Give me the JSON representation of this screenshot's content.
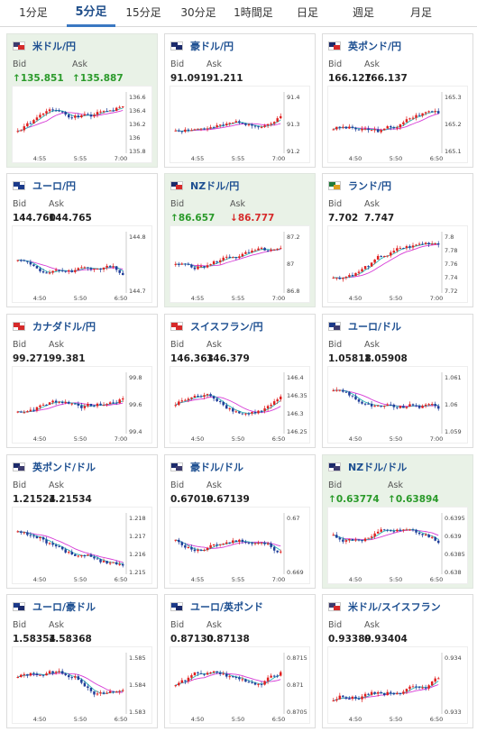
{
  "tabs": [
    {
      "label": "1分足",
      "active": false
    },
    {
      "label": "5分足",
      "active": true
    },
    {
      "label": "15分足",
      "active": false
    },
    {
      "label": "30分足",
      "active": false
    },
    {
      "label": "1時間足",
      "active": false
    },
    {
      "label": "日足",
      "active": false
    },
    {
      "label": "週足",
      "active": false
    },
    {
      "label": "月足",
      "active": false
    }
  ],
  "labels": {
    "bid": "Bid",
    "ask": "Ask"
  },
  "cards": [
    {
      "pair": "米ドル/円",
      "flag": [
        "#3c3b6e",
        "#d62a2a"
      ],
      "highlight": true,
      "bid": "135.851",
      "ask": "135.887",
      "bid_dir": "up",
      "ask_dir": "up",
      "chart_data": {
        "type": "candlestick",
        "yticks": [
          "136.6",
          "136.4",
          "136.2",
          "136",
          "135.8"
        ],
        "xticks": [
          "4:55",
          "5:55",
          "7:00"
        ],
        "trend": 0.35,
        "wave": 0.5,
        "seed": 1
      }
    },
    {
      "pair": "豪ドル/円",
      "flag": [
        "#1b2a6b",
        "#1b2a6b"
      ],
      "highlight": false,
      "bid": "91.091",
      "ask": "91.211",
      "bid_dir": "",
      "ask_dir": "",
      "chart_data": {
        "type": "candlestick",
        "yticks": [
          "91.4",
          "91.3",
          "91.2"
        ],
        "xticks": [
          "4:55",
          "5:55",
          "7:00"
        ],
        "trend": 0.3,
        "wave": 0.45,
        "seed": 2
      }
    },
    {
      "pair": "英ポンド/円",
      "flag": [
        "#1b2a6b",
        "#d62a2a"
      ],
      "highlight": false,
      "bid": "166.127",
      "ask": "166.137",
      "bid_dir": "",
      "ask_dir": "",
      "chart_data": {
        "type": "candlestick",
        "yticks": [
          "165.3",
          "165.2",
          "165.1"
        ],
        "xticks": [
          "4:50",
          "5:50",
          "6:50"
        ],
        "trend": 0.2,
        "wave": 0.6,
        "seed": 3
      }
    },
    {
      "pair": "ユーロ/円",
      "flag": [
        "#1b3a8a",
        "#1b3a8a"
      ],
      "highlight": false,
      "bid": "144.760",
      "ask": "144.765",
      "bid_dir": "",
      "ask_dir": "",
      "chart_data": {
        "type": "candlestick",
        "yticks": [
          "144.8",
          "144.7"
        ],
        "xticks": [
          "4:50",
          "5:50",
          "6:50"
        ],
        "trend": -0.2,
        "wave": 0.55,
        "seed": 4
      }
    },
    {
      "pair": "NZドル/円",
      "flag": [
        "#1b2a6b",
        "#d62a2a"
      ],
      "highlight": true,
      "bid": "86.657",
      "ask": "86.777",
      "bid_dir": "up",
      "ask_dir": "dn",
      "chart_data": {
        "type": "candlestick",
        "yticks": [
          "87.2",
          "87",
          "86.8"
        ],
        "xticks": [
          "4:55",
          "5:55",
          "7:00"
        ],
        "trend": 0.1,
        "wave": 0.5,
        "seed": 5
      }
    },
    {
      "pair": "ランド/円",
      "flag": [
        "#1e7a3a",
        "#e0a020"
      ],
      "highlight": false,
      "bid": "7.702",
      "ask": "7.747",
      "bid_dir": "",
      "ask_dir": "",
      "chart_data": {
        "type": "candlestick",
        "yticks": [
          "7.8",
          "7.78",
          "7.76",
          "7.74",
          "7.72"
        ],
        "xticks": [
          "4:50",
          "5:50",
          "7:00"
        ],
        "trend": 0.6,
        "wave": 0.3,
        "seed": 6
      }
    },
    {
      "pair": "カナダドル/円",
      "flag": [
        "#d62a2a",
        "#d62a2a"
      ],
      "highlight": false,
      "bid": "99.271",
      "ask": "99.381",
      "bid_dir": "",
      "ask_dir": "",
      "chart_data": {
        "type": "candlestick",
        "yticks": [
          "99.8",
          "99.6",
          "99.4"
        ],
        "xticks": [
          "4:50",
          "5:50",
          "7:00"
        ],
        "trend": 0.35,
        "wave": 0.4,
        "seed": 7
      }
    },
    {
      "pair": "スイスフラン/円",
      "flag": [
        "#d62a2a",
        "#d62a2a"
      ],
      "highlight": false,
      "bid": "146.363",
      "ask": "146.379",
      "bid_dir": "",
      "ask_dir": "",
      "chart_data": {
        "type": "candlestick",
        "yticks": [
          "146.4",
          "146.35",
          "146.3",
          "146.25"
        ],
        "xticks": [
          "4:50",
          "5:50",
          "6:50"
        ],
        "trend": 0.1,
        "wave": 0.6,
        "seed": 8
      }
    },
    {
      "pair": "ユーロ/ドル",
      "flag": [
        "#1b3a8a",
        "#3c3b6e"
      ],
      "highlight": false,
      "bid": "1.05818",
      "ask": "1.05908",
      "bid_dir": "",
      "ask_dir": "",
      "chart_data": {
        "type": "candlestick",
        "yticks": [
          "1.061",
          "1.06",
          "1.059"
        ],
        "xticks": [
          "4:50",
          "5:50",
          "7:00"
        ],
        "trend": -0.5,
        "wave": 0.4,
        "seed": 9
      }
    },
    {
      "pair": "英ポンド/ドル",
      "flag": [
        "#1b2a6b",
        "#3c3b6e"
      ],
      "highlight": false,
      "bid": "1.21524",
      "ask": "1.21534",
      "bid_dir": "",
      "ask_dir": "",
      "chart_data": {
        "type": "candlestick",
        "yticks": [
          "1.218",
          "1.217",
          "1.216",
          "1.215"
        ],
        "xticks": [
          "4:50",
          "5:50",
          "6:50"
        ],
        "trend": -0.55,
        "wave": 0.35,
        "seed": 10
      }
    },
    {
      "pair": "豪ドル/ドル",
      "flag": [
        "#1b2a6b",
        "#3c3b6e"
      ],
      "highlight": false,
      "bid": "0.67019",
      "ask": "0.67139",
      "bid_dir": "",
      "ask_dir": "",
      "chart_data": {
        "type": "candlestick",
        "yticks": [
          "0.67",
          "0.669"
        ],
        "xticks": [
          "4:55",
          "5:55",
          "7:00"
        ],
        "trend": -0.1,
        "wave": 0.5,
        "seed": 11
      }
    },
    {
      "pair": "NZドル/ドル",
      "flag": [
        "#1b2a6b",
        "#3c3b6e"
      ],
      "highlight": true,
      "bid": "0.63774",
      "ask": "0.63894",
      "bid_dir": "up",
      "ask_dir": "up",
      "chart_data": {
        "type": "candlestick",
        "yticks": [
          "0.6395",
          "0.639",
          "0.6385",
          "0.638"
        ],
        "xticks": [
          "4:50",
          "5:50",
          "6:50"
        ],
        "trend": -0.3,
        "wave": 0.55,
        "seed": 12
      }
    },
    {
      "pair": "ユーロ/豪ドル",
      "flag": [
        "#1b3a8a",
        "#1b2a6b"
      ],
      "highlight": false,
      "bid": "1.58354",
      "ask": "1.58368",
      "bid_dir": "",
      "ask_dir": "",
      "chart_data": {
        "type": "candlestick",
        "yticks": [
          "1.585",
          "1.584",
          "1.583"
        ],
        "xticks": [
          "4:50",
          "5:50",
          "6:50"
        ],
        "trend": -0.2,
        "wave": 0.5,
        "seed": 13
      }
    },
    {
      "pair": "ユーロ/英ポンド",
      "flag": [
        "#1b3a8a",
        "#1b2a6b"
      ],
      "highlight": false,
      "bid": "0.87130",
      "ask": "0.87138",
      "bid_dir": "",
      "ask_dir": "",
      "chart_data": {
        "type": "candlestick",
        "yticks": [
          "0.8715",
          "0.871",
          "0.8705"
        ],
        "xticks": [
          "4:50",
          "5:50",
          "6:50"
        ],
        "trend": 0.1,
        "wave": 0.6,
        "seed": 14
      }
    },
    {
      "pair": "米ドル/スイスフラン",
      "flag": [
        "#3c3b6e",
        "#d62a2a"
      ],
      "highlight": false,
      "bid": "0.93389",
      "ask": "0.93404",
      "bid_dir": "",
      "ask_dir": "",
      "chart_data": {
        "type": "candlestick",
        "yticks": [
          "0.934",
          "0.933"
        ],
        "xticks": [
          "4:50",
          "5:50",
          "6:50"
        ],
        "trend": 0.6,
        "wave": 0.3,
        "seed": 15
      }
    }
  ]
}
